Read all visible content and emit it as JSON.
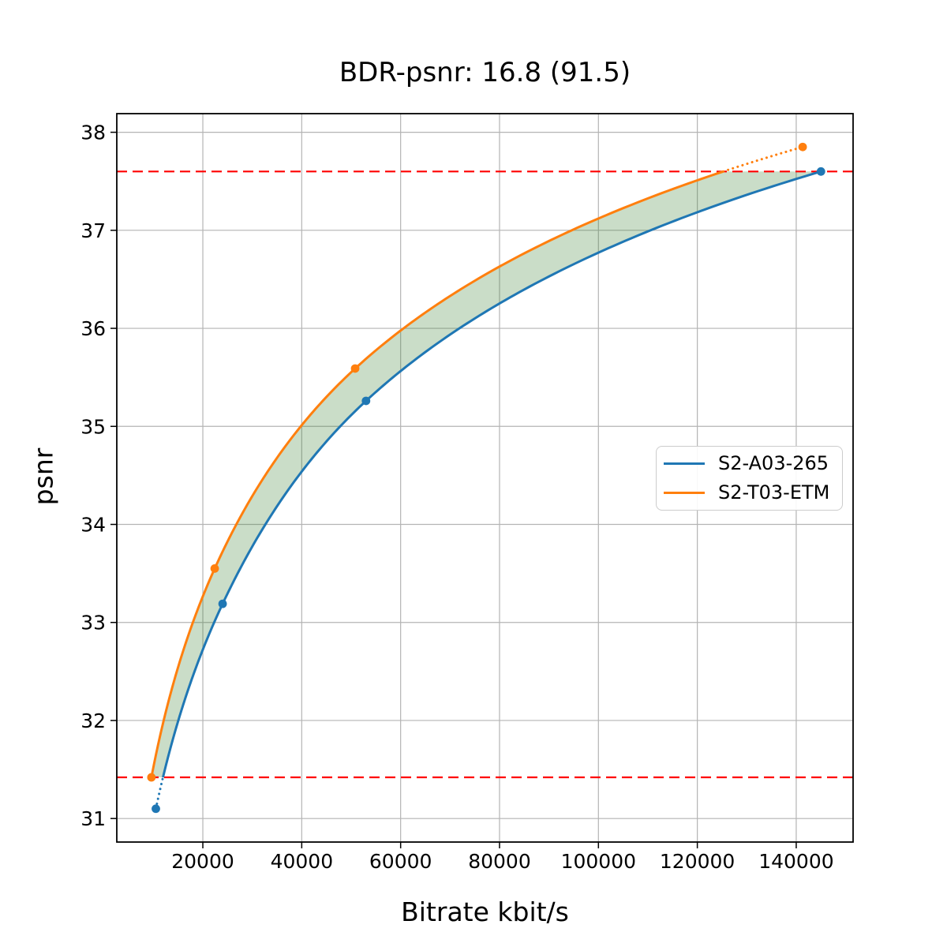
{
  "chart_data": {
    "type": "line",
    "title": "BDR-psnr: 16.8 (91.5)",
    "xlabel": "Bitrate kbit/s",
    "ylabel": "psnr",
    "xlim": [
      2600,
      151500
    ],
    "ylim": [
      30.76,
      38.19
    ],
    "x_ticks": [
      20000,
      40000,
      60000,
      80000,
      100000,
      120000,
      140000
    ],
    "y_ticks": [
      31,
      32,
      33,
      34,
      35,
      36,
      37,
      38
    ],
    "grid": true,
    "grid_color": "#b4b4b4",
    "legend_position": "center-right",
    "interpolation": "pchip-on-log-bitrate",
    "curve_style_outside_overlap": "dotted",
    "series": [
      {
        "name": "S2-A03-265",
        "color": "#1f77b4",
        "points": [
          [
            10500,
            31.1
          ],
          [
            24000,
            33.19
          ],
          [
            53000,
            35.26
          ],
          [
            145000,
            37.6
          ]
        ]
      },
      {
        "name": "S2-T03-ETM",
        "color": "#ff7f0e",
        "points": [
          [
            9600,
            31.42
          ],
          [
            22400,
            33.55
          ],
          [
            50800,
            35.59
          ],
          [
            141300,
            37.85
          ]
        ]
      }
    ],
    "overlap_bounds": {
      "psnr_low": 31.42,
      "psnr_high": 37.6,
      "line_color": "#ff0000",
      "line_style": "dashed"
    },
    "fill_between": {
      "color": "rgba(60,130,50,0.27)"
    }
  }
}
